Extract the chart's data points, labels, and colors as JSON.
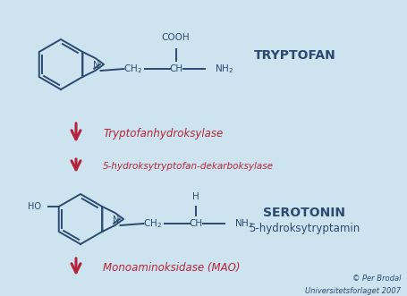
{
  "bg_color": "#cde4f0",
  "dark_blue": "#2b4a6e",
  "red": "#b5233a",
  "fig_width": 4.55,
  "fig_height": 3.31,
  "title_tryptofan": "TRYPTOFAN",
  "title_serotonin": "SEROTONIN",
  "subtitle_serotonin": "5-hydroksytryptamin",
  "enzyme1": "Tryptofanhydroksylase",
  "enzyme2": "5-hydroksytryptofan-dekarboksylase",
  "enzyme3": "Monoaminoksidase (MAO)",
  "copyright": "© Per Brodal",
  "publisher": "Universitetsforlaget 2007"
}
